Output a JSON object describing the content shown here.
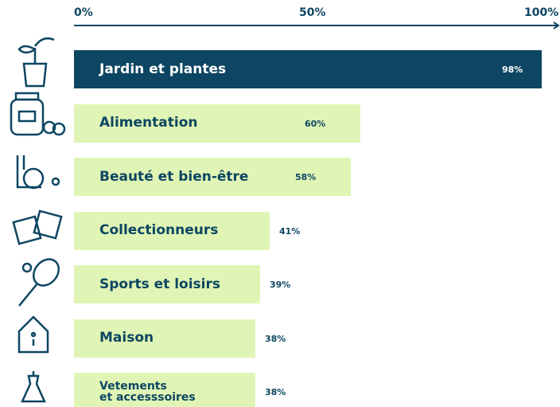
{
  "chart_data": {
    "type": "bar",
    "orientation": "horizontal",
    "categories": [
      "Jardin et plantes",
      "Alimentation",
      "Beauté et bien-être",
      "Collectionneurs",
      "Sports et loisirs",
      "Maison",
      "Vetements\net accesssoires"
    ],
    "values": [
      98,
      60,
      58,
      41,
      39,
      38,
      38
    ],
    "value_labels": [
      "98%",
      "60%",
      "58%",
      "41%",
      "39%",
      "38%",
      "38%"
    ],
    "colors": [
      "#0d4662",
      "#e0f5b5",
      "#e0f5b5",
      "#e0f5b5",
      "#e0f5b5",
      "#e0f5b5",
      "#e0f5b5"
    ],
    "xlim": [
      0,
      100
    ],
    "xticks": [
      {
        "value": 0,
        "label": "0%"
      },
      {
        "value": 50,
        "label": "50%"
      },
      {
        "value": 100,
        "label": "100%"
      }
    ]
  }
}
